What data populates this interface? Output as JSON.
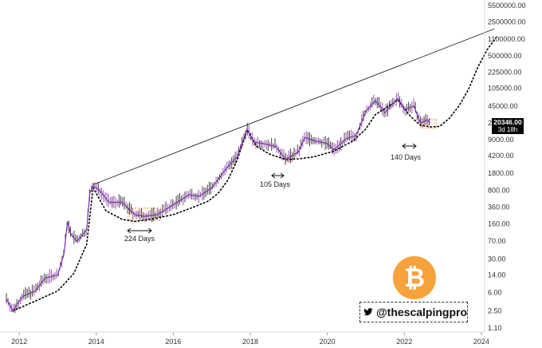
{
  "chart_data": {
    "type": "line",
    "title": "",
    "xlabel": "",
    "ylabel": "",
    "y_scale": "log",
    "x_ticks": [
      "2012",
      "2014",
      "2016",
      "2018",
      "2020",
      "2022",
      "2024"
    ],
    "y_ticks": [
      "5500000.00",
      "2500000.00",
      "1100000.00",
      "500000.00",
      "225000.00",
      "105000.00",
      "45000.00",
      "20000.00",
      "9000.00",
      "4200.00",
      "1800.00",
      "800.00",
      "360.00",
      "160.00",
      "70.00",
      "30.00",
      "14.00",
      "6.00",
      "2.50",
      "1.10"
    ],
    "series": [
      {
        "name": "",
        "x": [
          "2011-09",
          "2011-11",
          "2012-02",
          "2012-06",
          "2012-09",
          "2013-01",
          "2013-03",
          "2013-04",
          "2013-05",
          "2013-07",
          "2013-10",
          "2013-11",
          "2013-12",
          "2014-02",
          "2014-05",
          "2014-09",
          "2015-01",
          "2015-04",
          "2015-08",
          "2016-01",
          "2016-06",
          "2016-09",
          "2017-01",
          "2017-06",
          "2017-09",
          "2017-12",
          "2018-02",
          "2018-05",
          "2018-09",
          "2018-12",
          "2019-04",
          "2019-06",
          "2019-09",
          "2020-01",
          "2020-03",
          "2020-07",
          "2020-10",
          "2021-01",
          "2021-04",
          "2021-07",
          "2021-09",
          "2021-11",
          "2022-01",
          "2022-04",
          "2022-06",
          "2022-08",
          "2022-09"
        ],
        "values": [
          4.5,
          2.5,
          5,
          6.5,
          12,
          14,
          40,
          180,
          100,
          70,
          120,
          700,
          1000,
          800,
          450,
          450,
          250,
          230,
          250,
          400,
          650,
          600,
          900,
          2500,
          4000,
          15000,
          8000,
          7500,
          6500,
          3500,
          5000,
          10000,
          8500,
          7500,
          5500,
          9500,
          11000,
          35000,
          58000,
          33000,
          47000,
          65000,
          38000,
          45000,
          20000,
          23000,
          20346
        ]
      }
    ],
    "support_curve": {
      "x": [
        "2011-11",
        "2012-06",
        "2013-01",
        "2013-06",
        "2013-10",
        "2013-12",
        "2014-04",
        "2014-09",
        "2015-01",
        "2015-06",
        "2016-01",
        "2016-06",
        "2016-12",
        "2017-03",
        "2017-06",
        "2017-09",
        "2017-12",
        "2018-03",
        "2018-07",
        "2018-12",
        "2019-04",
        "2019-09",
        "2020-03",
        "2020-09",
        "2021-01",
        "2021-04",
        "2021-11",
        "2022-03",
        "2022-06",
        "2022-09",
        "2022-12",
        "2023-03",
        "2023-06",
        "2023-09",
        "2023-12",
        "2024-03",
        "2024-06"
      ],
      "values": [
        2.5,
        4,
        6.5,
        15,
        60,
        900,
        300,
        200,
        180,
        200,
        250,
        330,
        480,
        700,
        1300,
        3500,
        14500,
        6500,
        4500,
        3500,
        3600,
        4000,
        5200,
        8500,
        15000,
        30000,
        60000,
        27000,
        18000,
        16500,
        17000,
        25000,
        45000,
        100000,
        300000,
        700000,
        1300000
      ]
    },
    "resistance_line": {
      "x": [
        "2013-12",
        "2024-05"
      ],
      "values": [
        1050,
        1800000
      ]
    },
    "accumulation_boxes": [
      {
        "x_start": "2014-11",
        "x_end": "2015-09",
        "low": 190,
        "high": 340
      },
      {
        "x_start": "2018-12",
        "x_end": "2019-02",
        "low": 3200,
        "high": 4300
      },
      {
        "x_start": "2022-06",
        "x_end": "2022-11",
        "low": 15500,
        "high": 24000
      }
    ],
    "annotations": [
      {
        "label": "224 Days"
      },
      {
        "label": "105 Days"
      },
      {
        "label": "140 Days"
      }
    ],
    "last_price": {
      "value": "20346.00",
      "timeframe": "3d 18h"
    }
  },
  "overlay": {
    "handle": "@thescalpingpro",
    "bitcoin_logo": "bitcoin-icon",
    "twitter_icon": "twitter-icon",
    "logo_color": "#F7A23B"
  }
}
